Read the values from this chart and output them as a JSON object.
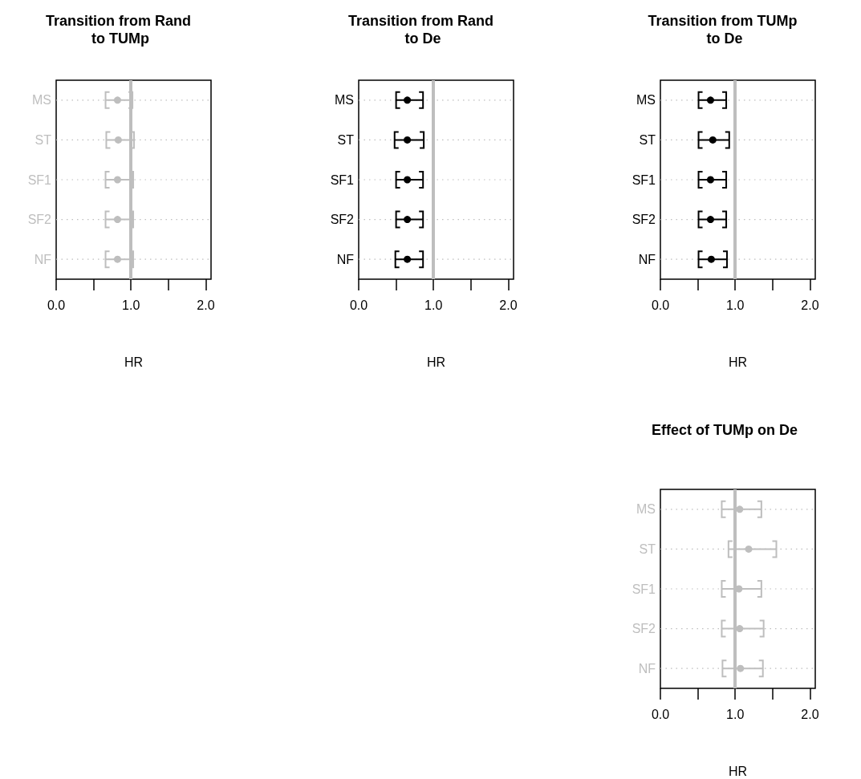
{
  "chart_data": [
    {
      "type": "scatter",
      "orientation": "horizontal",
      "title": "Transition from Rand to TUMp",
      "xlabel": "HR",
      "categories": [
        "MS",
        "ST",
        "SF1",
        "SF2",
        "NF"
      ],
      "xlim": [
        0,
        2.07
      ],
      "xticks": [
        {
          "value": 0,
          "label": "0.0"
        },
        {
          "value": 0.5,
          "label": null
        },
        {
          "value": 1,
          "label": "1.0"
        },
        {
          "value": 1.5,
          "label": null
        },
        {
          "value": 2,
          "label": "2.0"
        }
      ],
      "grid": "y",
      "marker": "circle",
      "ref_lines": [
        {
          "axis": "x",
          "value": 1,
          "color": "#bebebe"
        }
      ],
      "series": [
        {
          "color": "#bebebe",
          "values": [
            0.82,
            0.83,
            0.82,
            0.82,
            0.82
          ],
          "errors": [
            [
              0.66,
              1.02
            ],
            [
              0.67,
              1.04
            ],
            [
              0.66,
              1.03
            ],
            [
              0.66,
              1.03
            ],
            [
              0.66,
              1.03
            ]
          ]
        }
      ]
    },
    {
      "type": "scatter",
      "orientation": "horizontal",
      "title": "Transition from Rand to De",
      "xlabel": "HR",
      "categories": [
        "MS",
        "ST",
        "SF1",
        "SF2",
        "NF"
      ],
      "xlim": [
        0,
        2.07
      ],
      "xticks": [
        {
          "value": 0,
          "label": "0.0"
        },
        {
          "value": 0.5,
          "label": null
        },
        {
          "value": 1,
          "label": "1.0"
        },
        {
          "value": 1.5,
          "label": null
        },
        {
          "value": 2,
          "label": "2.0"
        }
      ],
      "grid": "y",
      "marker": "circle",
      "ref_lines": [
        {
          "axis": "x",
          "value": 1,
          "color": "#bebebe"
        }
      ],
      "series": [
        {
          "color": "#000000",
          "values": [
            0.65,
            0.65,
            0.65,
            0.65,
            0.65
          ],
          "errors": [
            [
              0.5,
              0.86
            ],
            [
              0.48,
              0.87
            ],
            [
              0.5,
              0.86
            ],
            [
              0.5,
              0.86
            ],
            [
              0.49,
              0.86
            ]
          ]
        }
      ]
    },
    {
      "type": "scatter",
      "orientation": "horizontal",
      "title": "Transition from TUMp to De",
      "xlabel": "HR",
      "categories": [
        "MS",
        "ST",
        "SF1",
        "SF2",
        "NF"
      ],
      "xlim": [
        0,
        2.07
      ],
      "xticks": [
        {
          "value": 0,
          "label": "0.0"
        },
        {
          "value": 0.5,
          "label": null
        },
        {
          "value": 1,
          "label": "1.0"
        },
        {
          "value": 1.5,
          "label": null
        },
        {
          "value": 2,
          "label": "2.0"
        }
      ],
      "grid": "y",
      "marker": "circle",
      "ref_lines": [
        {
          "axis": "x",
          "value": 1,
          "color": "#bebebe"
        }
      ],
      "series": [
        {
          "color": "#000000",
          "values": [
            0.67,
            0.7,
            0.67,
            0.67,
            0.68
          ],
          "errors": [
            [
              0.51,
              0.88
            ],
            [
              0.51,
              0.92
            ],
            [
              0.51,
              0.88
            ],
            [
              0.51,
              0.88
            ],
            [
              0.51,
              0.89
            ]
          ]
        }
      ]
    },
    {
      "type": "scatter",
      "orientation": "horizontal",
      "title": "Effect of TUMp on De",
      "xlabel": "HR",
      "categories": [
        "MS",
        "ST",
        "SF1",
        "SF2",
        "NF"
      ],
      "xlim": [
        0,
        2.07
      ],
      "xticks": [
        {
          "value": 0,
          "label": "0.0"
        },
        {
          "value": 0.5,
          "label": null
        },
        {
          "value": 1,
          "label": "1.0"
        },
        {
          "value": 1.5,
          "label": null
        },
        {
          "value": 2,
          "label": "2.0"
        }
      ],
      "grid": "y",
      "marker": "circle",
      "ref_lines": [
        {
          "axis": "x",
          "value": 1,
          "color": "#bebebe"
        }
      ],
      "series": [
        {
          "color": "#bebebe",
          "values": [
            1.06,
            1.18,
            1.05,
            1.06,
            1.07
          ],
          "errors": [
            [
              0.82,
              1.35
            ],
            [
              0.91,
              1.55
            ],
            [
              0.82,
              1.35
            ],
            [
              0.82,
              1.38
            ],
            [
              0.83,
              1.37
            ]
          ]
        }
      ]
    }
  ]
}
